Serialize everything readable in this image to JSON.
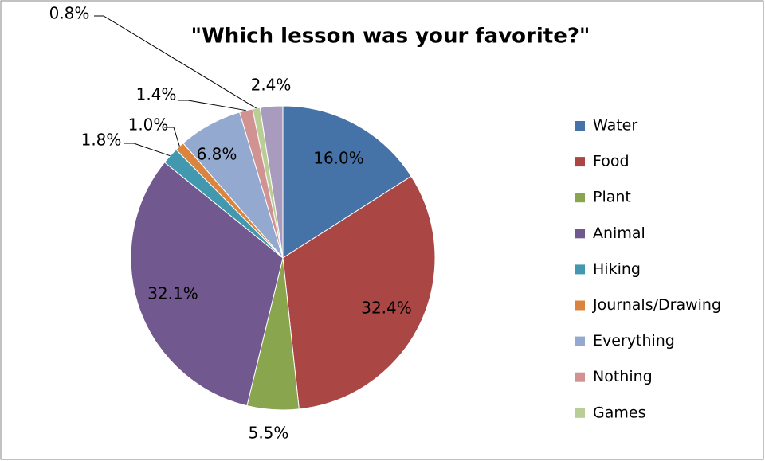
{
  "chart_data": {
    "type": "pie",
    "title": "\"Which lesson was your favorite?\"",
    "categories": [
      "Water",
      "Food",
      "Plant",
      "Animal",
      "Hiking",
      "Journals/Drawing",
      "Everything",
      "Nothing",
      "Games",
      null
    ],
    "values": [
      16.0,
      32.4,
      5.5,
      32.1,
      1.8,
      1.0,
      6.8,
      1.4,
      0.8,
      2.4
    ],
    "value_labels": [
      "16.0%",
      "32.4%",
      "5.5%",
      "32.1%",
      "1.8%",
      "1.0%",
      "6.8%",
      "1.4%",
      "0.8%",
      "2.4%"
    ],
    "colors": [
      "#4572a7",
      "#aa4643",
      "#89a54e",
      "#71588f",
      "#4198af",
      "#db843d",
      "#93a9cf",
      "#d19392",
      "#b9cd96",
      "#a99bbd"
    ],
    "legend": "right"
  }
}
